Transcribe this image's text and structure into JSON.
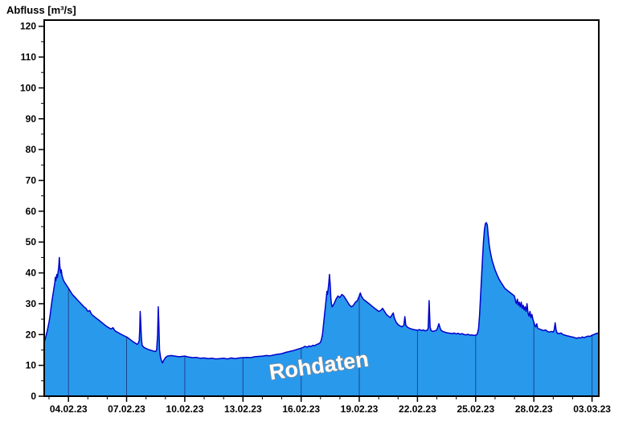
{
  "chart_data": {
    "type": "area",
    "title": "Abfluss [m³/s]",
    "watermark": "Rohdaten",
    "ylabel": "Abfluss [m³/s]",
    "xlabel": "",
    "x_unit": "days since 04.02.23 00:00",
    "x_domain": [
      -1.25,
      27.35
    ],
    "y_domain": [
      0,
      122
    ],
    "y_ticks": [
      0,
      10,
      20,
      30,
      40,
      50,
      60,
      70,
      80,
      90,
      100,
      110,
      120
    ],
    "y_minor_step": 5,
    "x_ticks": [
      {
        "day": 0,
        "label": "04.02.23"
      },
      {
        "day": 3,
        "label": "07.02.23"
      },
      {
        "day": 6,
        "label": "10.02.23"
      },
      {
        "day": 9,
        "label": "13.02.23"
      },
      {
        "day": 12,
        "label": "16.02.23"
      },
      {
        "day": 15,
        "label": "19.02.23"
      },
      {
        "day": 18,
        "label": "22.02.23"
      },
      {
        "day": 21,
        "label": "25.02.23"
      },
      {
        "day": 24,
        "label": "28.02.23"
      },
      {
        "day": 27,
        "label": "03.03.23"
      }
    ],
    "colors": {
      "fill": "#2999EC",
      "line": "#0000CC",
      "frame": "#000000",
      "gridline": "#1B2A6B",
      "background": "#FFFFFF",
      "watermark_fill": "#FFFFFF",
      "watermark_outline": "#8F8F8F"
    },
    "series": [
      {
        "name": "Abfluss Rohdaten",
        "points": [
          [
            -1.25,
            17.5
          ],
          [
            -1.2,
            18.5
          ],
          [
            -1.1,
            21
          ],
          [
            -1.0,
            24
          ],
          [
            -0.95,
            26
          ],
          [
            -0.9,
            28.5
          ],
          [
            -0.85,
            31
          ],
          [
            -0.8,
            33
          ],
          [
            -0.75,
            35
          ],
          [
            -0.7,
            37
          ],
          [
            -0.68,
            38.5
          ],
          [
            -0.65,
            37.5
          ],
          [
            -0.6,
            39.5
          ],
          [
            -0.57,
            38.5
          ],
          [
            -0.53,
            40.5
          ],
          [
            -0.5,
            42
          ],
          [
            -0.47,
            45
          ],
          [
            -0.44,
            42
          ],
          [
            -0.4,
            40
          ],
          [
            -0.37,
            41
          ],
          [
            -0.33,
            39
          ],
          [
            -0.3,
            38.5
          ],
          [
            -0.25,
            37.5
          ],
          [
            -0.2,
            37
          ],
          [
            -0.15,
            36.5
          ],
          [
            -0.1,
            36
          ],
          [
            0,
            35
          ],
          [
            0.2,
            33
          ],
          [
            0.35,
            32
          ],
          [
            0.5,
            31
          ],
          [
            0.65,
            30
          ],
          [
            0.8,
            29
          ],
          [
            0.9,
            28.5
          ],
          [
            1.0,
            27.5
          ],
          [
            1.1,
            27.8
          ],
          [
            1.2,
            26.5
          ],
          [
            1.4,
            25.5
          ],
          [
            1.6,
            24.5
          ],
          [
            1.8,
            23.5
          ],
          [
            2.0,
            22.5
          ],
          [
            2.2,
            21.8
          ],
          [
            2.3,
            22.2
          ],
          [
            2.4,
            21.2
          ],
          [
            2.6,
            20.5
          ],
          [
            2.8,
            19.8
          ],
          [
            3.0,
            19.2
          ],
          [
            3.1,
            18.8
          ],
          [
            3.2,
            18.3
          ],
          [
            3.3,
            17.8
          ],
          [
            3.4,
            17.4
          ],
          [
            3.5,
            17.0
          ],
          [
            3.55,
            16.8
          ],
          [
            3.6,
            17.2
          ],
          [
            3.65,
            18.0
          ],
          [
            3.68,
            22
          ],
          [
            3.7,
            27.5
          ],
          [
            3.73,
            24
          ],
          [
            3.76,
            19
          ],
          [
            3.8,
            16.5
          ],
          [
            3.9,
            15.8
          ],
          [
            4.0,
            15.5
          ],
          [
            4.1,
            15.2
          ],
          [
            4.2,
            15.0
          ],
          [
            4.3,
            14.8
          ],
          [
            4.4,
            14.6
          ],
          [
            4.5,
            14.5
          ],
          [
            4.55,
            15.0
          ],
          [
            4.6,
            20
          ],
          [
            4.63,
            29
          ],
          [
            4.66,
            24
          ],
          [
            4.7,
            15
          ],
          [
            4.75,
            12.5
          ],
          [
            4.8,
            11.5
          ],
          [
            4.85,
            10.8
          ],
          [
            4.9,
            11.5
          ],
          [
            5.0,
            12.5
          ],
          [
            5.1,
            13.0
          ],
          [
            5.3,
            13.2
          ],
          [
            5.5,
            13.0
          ],
          [
            5.7,
            12.8
          ],
          [
            6.0,
            13.0
          ],
          [
            6.2,
            12.7
          ],
          [
            6.4,
            12.5
          ],
          [
            6.6,
            12.6
          ],
          [
            6.8,
            12.3
          ],
          [
            7.0,
            12.4
          ],
          [
            7.2,
            12.2
          ],
          [
            7.4,
            12.3
          ],
          [
            7.6,
            12.1
          ],
          [
            7.8,
            12.2
          ],
          [
            8.0,
            12.3
          ],
          [
            8.2,
            12.1
          ],
          [
            8.4,
            12.4
          ],
          [
            8.6,
            12.2
          ],
          [
            8.8,
            12.4
          ],
          [
            9.0,
            12.5
          ],
          [
            9.2,
            12.6
          ],
          [
            9.4,
            12.5
          ],
          [
            9.6,
            12.8
          ],
          [
            9.8,
            12.9
          ],
          [
            10.0,
            13.0
          ],
          [
            10.2,
            13.2
          ],
          [
            10.4,
            13.1
          ],
          [
            10.6,
            13.4
          ],
          [
            10.8,
            13.6
          ],
          [
            11.0,
            13.8
          ],
          [
            11.2,
            14.2
          ],
          [
            11.4,
            14.5
          ],
          [
            11.6,
            14.8
          ],
          [
            11.8,
            15.2
          ],
          [
            12.0,
            15.6
          ],
          [
            12.1,
            15.8
          ],
          [
            12.2,
            16.2
          ],
          [
            12.3,
            15.9
          ],
          [
            12.4,
            16.3
          ],
          [
            12.5,
            16.1
          ],
          [
            12.6,
            16.5
          ],
          [
            12.7,
            16.4
          ],
          [
            12.8,
            16.8
          ],
          [
            12.9,
            17.0
          ],
          [
            13.0,
            17.5
          ],
          [
            13.05,
            18.5
          ],
          [
            13.1,
            20
          ],
          [
            13.15,
            23
          ],
          [
            13.2,
            26
          ],
          [
            13.25,
            29
          ],
          [
            13.3,
            32
          ],
          [
            13.33,
            34
          ],
          [
            13.36,
            33
          ],
          [
            13.4,
            35
          ],
          [
            13.43,
            37
          ],
          [
            13.46,
            39.5
          ],
          [
            13.5,
            36
          ],
          [
            13.53,
            32
          ],
          [
            13.56,
            30
          ],
          [
            13.6,
            29
          ],
          [
            13.7,
            30
          ],
          [
            13.8,
            31.5
          ],
          [
            13.9,
            32.5
          ],
          [
            14.0,
            32
          ],
          [
            14.1,
            33
          ],
          [
            14.2,
            32.5
          ],
          [
            14.3,
            31.5
          ],
          [
            14.4,
            30.5
          ],
          [
            14.5,
            29.5
          ],
          [
            14.6,
            29
          ],
          [
            14.7,
            29.5
          ],
          [
            14.8,
            30.5
          ],
          [
            14.9,
            31
          ],
          [
            15.0,
            32.5
          ],
          [
            15.05,
            33.5
          ],
          [
            15.1,
            32.5
          ],
          [
            15.2,
            31.5
          ],
          [
            15.3,
            31
          ],
          [
            15.4,
            30.5
          ],
          [
            15.5,
            30
          ],
          [
            15.6,
            29.5
          ],
          [
            15.7,
            29
          ],
          [
            15.8,
            28.5
          ],
          [
            15.9,
            28
          ],
          [
            16.0,
            27.5
          ],
          [
            16.1,
            27.8
          ],
          [
            16.2,
            28.5
          ],
          [
            16.3,
            27.5
          ],
          [
            16.4,
            26.5
          ],
          [
            16.5,
            26
          ],
          [
            16.6,
            25.5
          ],
          [
            16.7,
            26.5
          ],
          [
            16.75,
            27
          ],
          [
            16.8,
            25.5
          ],
          [
            16.9,
            24
          ],
          [
            17.0,
            23.2
          ],
          [
            17.1,
            22.8
          ],
          [
            17.2,
            22.5
          ],
          [
            17.3,
            23
          ],
          [
            17.35,
            25.8
          ],
          [
            17.4,
            23
          ],
          [
            17.5,
            22.3
          ],
          [
            17.6,
            22
          ],
          [
            17.7,
            21.8
          ],
          [
            17.8,
            21.6
          ],
          [
            17.9,
            21.5
          ],
          [
            18.0,
            21.4
          ],
          [
            18.1,
            21.6
          ],
          [
            18.2,
            21.3
          ],
          [
            18.3,
            21.5
          ],
          [
            18.4,
            21.2
          ],
          [
            18.5,
            21.4
          ],
          [
            18.55,
            22
          ],
          [
            18.6,
            31
          ],
          [
            18.65,
            22.5
          ],
          [
            18.7,
            21.3
          ],
          [
            18.8,
            21
          ],
          [
            18.9,
            21.2
          ],
          [
            19.0,
            21.5
          ],
          [
            19.05,
            22.5
          ],
          [
            19.1,
            23.5
          ],
          [
            19.15,
            22.5
          ],
          [
            19.2,
            21.5
          ],
          [
            19.3,
            21
          ],
          [
            19.4,
            20.8
          ],
          [
            19.5,
            20.6
          ],
          [
            19.6,
            20.5
          ],
          [
            19.7,
            20.4
          ],
          [
            19.8,
            20.3
          ],
          [
            19.9,
            20.5
          ],
          [
            20.0,
            20.2
          ],
          [
            20.1,
            20.4
          ],
          [
            20.2,
            20.1
          ],
          [
            20.3,
            20.3
          ],
          [
            20.4,
            20.0
          ],
          [
            20.5,
            19.9
          ],
          [
            20.6,
            20.1
          ],
          [
            20.7,
            19.8
          ],
          [
            20.8,
            19.9
          ],
          [
            20.9,
            19.7
          ],
          [
            21.0,
            19.8
          ],
          [
            21.05,
            19.9
          ],
          [
            21.1,
            20.5
          ],
          [
            21.15,
            22
          ],
          [
            21.2,
            26
          ],
          [
            21.25,
            32
          ],
          [
            21.3,
            38
          ],
          [
            21.35,
            44
          ],
          [
            21.4,
            50
          ],
          [
            21.45,
            54
          ],
          [
            21.5,
            56
          ],
          [
            21.55,
            56.3
          ],
          [
            21.6,
            55.5
          ],
          [
            21.65,
            52
          ],
          [
            21.7,
            49
          ],
          [
            21.75,
            47
          ],
          [
            21.8,
            45.5
          ],
          [
            21.85,
            44
          ],
          [
            21.9,
            43
          ],
          [
            21.95,
            42
          ],
          [
            22.0,
            41
          ],
          [
            22.1,
            39.5
          ],
          [
            22.2,
            38
          ],
          [
            22.3,
            37
          ],
          [
            22.4,
            36
          ],
          [
            22.5,
            35
          ],
          [
            22.6,
            34.5
          ],
          [
            22.7,
            34
          ],
          [
            22.8,
            33.5
          ],
          [
            22.9,
            33
          ],
          [
            23.0,
            32.5
          ],
          [
            23.05,
            31
          ],
          [
            23.1,
            30
          ],
          [
            23.15,
            31.5
          ],
          [
            23.2,
            29.5
          ],
          [
            23.25,
            30.5
          ],
          [
            23.3,
            29
          ],
          [
            23.35,
            30.5
          ],
          [
            23.4,
            28.5
          ],
          [
            23.45,
            29.5
          ],
          [
            23.5,
            28
          ],
          [
            23.55,
            29
          ],
          [
            23.6,
            27.5
          ],
          [
            23.65,
            30
          ],
          [
            23.7,
            27
          ],
          [
            23.75,
            26
          ],
          [
            23.8,
            27.5
          ],
          [
            23.85,
            25.5
          ],
          [
            23.9,
            26.5
          ],
          [
            23.95,
            25
          ],
          [
            24.0,
            24
          ],
          [
            24.05,
            23
          ],
          [
            24.1,
            22.5
          ],
          [
            24.15,
            23.5
          ],
          [
            24.2,
            22
          ],
          [
            24.3,
            21.8
          ],
          [
            24.4,
            21.5
          ],
          [
            24.5,
            21.3
          ],
          [
            24.6,
            21.5
          ],
          [
            24.7,
            21
          ],
          [
            24.8,
            20.8
          ],
          [
            24.9,
            21
          ],
          [
            25.0,
            20.8
          ],
          [
            25.05,
            21.5
          ],
          [
            25.1,
            23.8
          ],
          [
            25.15,
            21.5
          ],
          [
            25.2,
            20.5
          ],
          [
            25.3,
            20.3
          ],
          [
            25.4,
            20.5
          ],
          [
            25.5,
            20
          ],
          [
            25.6,
            19.8
          ],
          [
            25.7,
            19.6
          ],
          [
            25.8,
            19.5
          ],
          [
            25.9,
            19.3
          ],
          [
            26.0,
            19.2
          ],
          [
            26.1,
            19
          ],
          [
            26.2,
            18.8
          ],
          [
            26.3,
            19
          ],
          [
            26.4,
            18.9
          ],
          [
            26.5,
            19.2
          ],
          [
            26.6,
            19
          ],
          [
            26.7,
            19.3
          ],
          [
            26.8,
            19.5
          ],
          [
            26.9,
            19.4
          ],
          [
            27.0,
            19.8
          ],
          [
            27.1,
            20
          ],
          [
            27.2,
            20.3
          ],
          [
            27.35,
            20.5
          ]
        ]
      }
    ]
  }
}
